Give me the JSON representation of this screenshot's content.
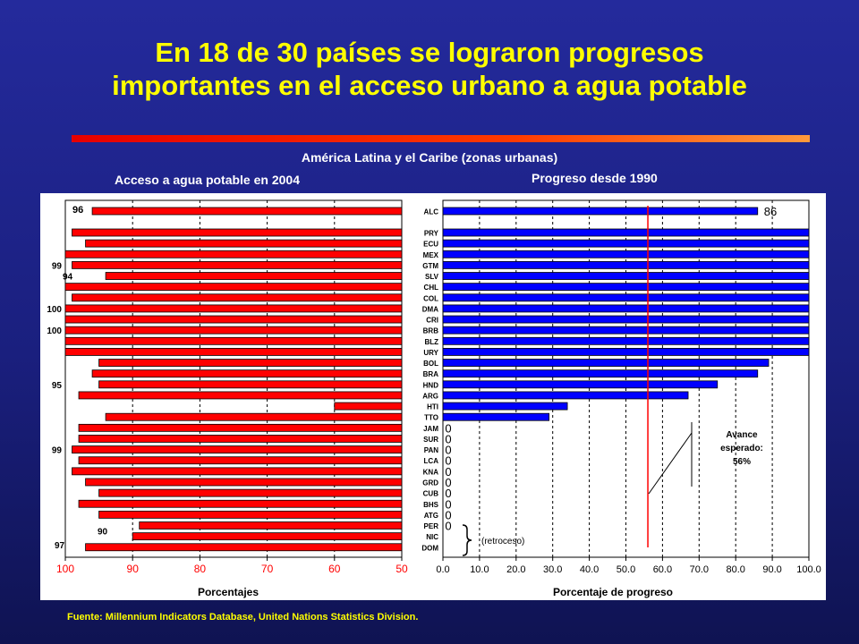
{
  "slide": {
    "title_line1": "En 18 de 30 países se lograron progresos",
    "title_line2": "importantes en el acceso urbano a agua potable",
    "subtitle": "América Latina y el Caribe (zonas urbanas)",
    "left_heading": "Acceso a agua potable en 2004",
    "right_heading": "Progreso desde 1990",
    "footer": "Fuente: Millennium Indicators Database, United Nations Statistics Division."
  },
  "chart_data": [
    {
      "type": "bar",
      "orientation": "horizontal",
      "title": "Acceso a agua potable en 2004",
      "xlabel": "Porcentajes",
      "x_reversed": true,
      "xlim": [
        50,
        100
      ],
      "xticks": [
        "100",
        "90",
        "80",
        "70",
        "60",
        "50"
      ],
      "grid": "vertical dashed",
      "bar_color": "#ff0000",
      "categories": [
        "ALC",
        "PRY",
        "ECU",
        "MEX",
        "GTM",
        "SLV",
        "CHL",
        "COL",
        "DMA",
        "CRI",
        "BRB",
        "BLZ",
        "URY",
        "BOL",
        "BRA",
        "HND",
        "ARG",
        "HTI",
        "TTO",
        "JAM",
        "SUR",
        "PAN",
        "LCA",
        "KNA",
        "GRD",
        "CUB",
        "BHS",
        "ATG",
        "PER",
        "NIC",
        "DOM"
      ],
      "values": [
        96,
        99,
        97,
        100,
        99,
        94,
        100,
        99,
        100,
        100,
        100,
        100,
        100,
        95,
        96,
        95,
        98,
        60,
        94,
        98,
        98,
        99,
        98,
        99,
        97,
        95,
        98,
        95,
        89,
        90,
        97
      ],
      "data_labels": [
        {
          "index": 0,
          "text": "96"
        },
        {
          "index": 4,
          "text": "99"
        },
        {
          "index": 5,
          "text": "94"
        },
        {
          "index": 8,
          "text": "100"
        },
        {
          "index": 10,
          "text": "100"
        },
        {
          "index": 15,
          "text": "95"
        },
        {
          "index": 21,
          "text": "99"
        },
        {
          "index": 29,
          "text": "90"
        },
        {
          "index": 30,
          "text": "97"
        }
      ]
    },
    {
      "type": "bar",
      "orientation": "horizontal",
      "title": "Progreso desde 1990",
      "xlabel": "Porcentaje de progreso",
      "xlim": [
        0,
        100
      ],
      "xticks": [
        "0.0",
        "10.0",
        "20.0",
        "30.0",
        "40.0",
        "50.0",
        "60.0",
        "70.0",
        "80.0",
        "90.0",
        "100.0"
      ],
      "grid": "vertical dashed",
      "bar_color": "#0000ff",
      "categories": [
        "ALC",
        "PRY",
        "ECU",
        "MEX",
        "GTM",
        "SLV",
        "CHL",
        "COL",
        "DMA",
        "CRI",
        "BRB",
        "BLZ",
        "URY",
        "BOL",
        "BRA",
        "HND",
        "ARG",
        "HTI",
        "TTO",
        "JAM",
        "SUR",
        "PAN",
        "LCA",
        "KNA",
        "GRD",
        "CUB",
        "BHS",
        "ATG",
        "PER",
        "NIC",
        "DOM"
      ],
      "values": [
        86,
        100,
        100,
        100,
        100,
        100,
        100,
        100,
        100,
        100,
        100,
        100,
        100,
        89,
        86,
        75,
        67,
        34,
        29,
        0,
        0,
        0,
        0,
        0,
        0,
        0,
        0,
        0,
        0,
        null,
        null
      ],
      "zero_markers": [
        "JAM",
        "SUR",
        "PAN",
        "LCA",
        "KNA",
        "GRD",
        "CUB",
        "BHS",
        "ATG",
        "PER"
      ],
      "data_labels": [
        {
          "index": 0,
          "text": "86"
        }
      ],
      "reference_line": {
        "value": 56,
        "color": "#ff0000"
      },
      "annotations": {
        "expected": [
          "Avance",
          "esperado:",
          "56%"
        ],
        "regression": "(retroceso)"
      }
    }
  ]
}
